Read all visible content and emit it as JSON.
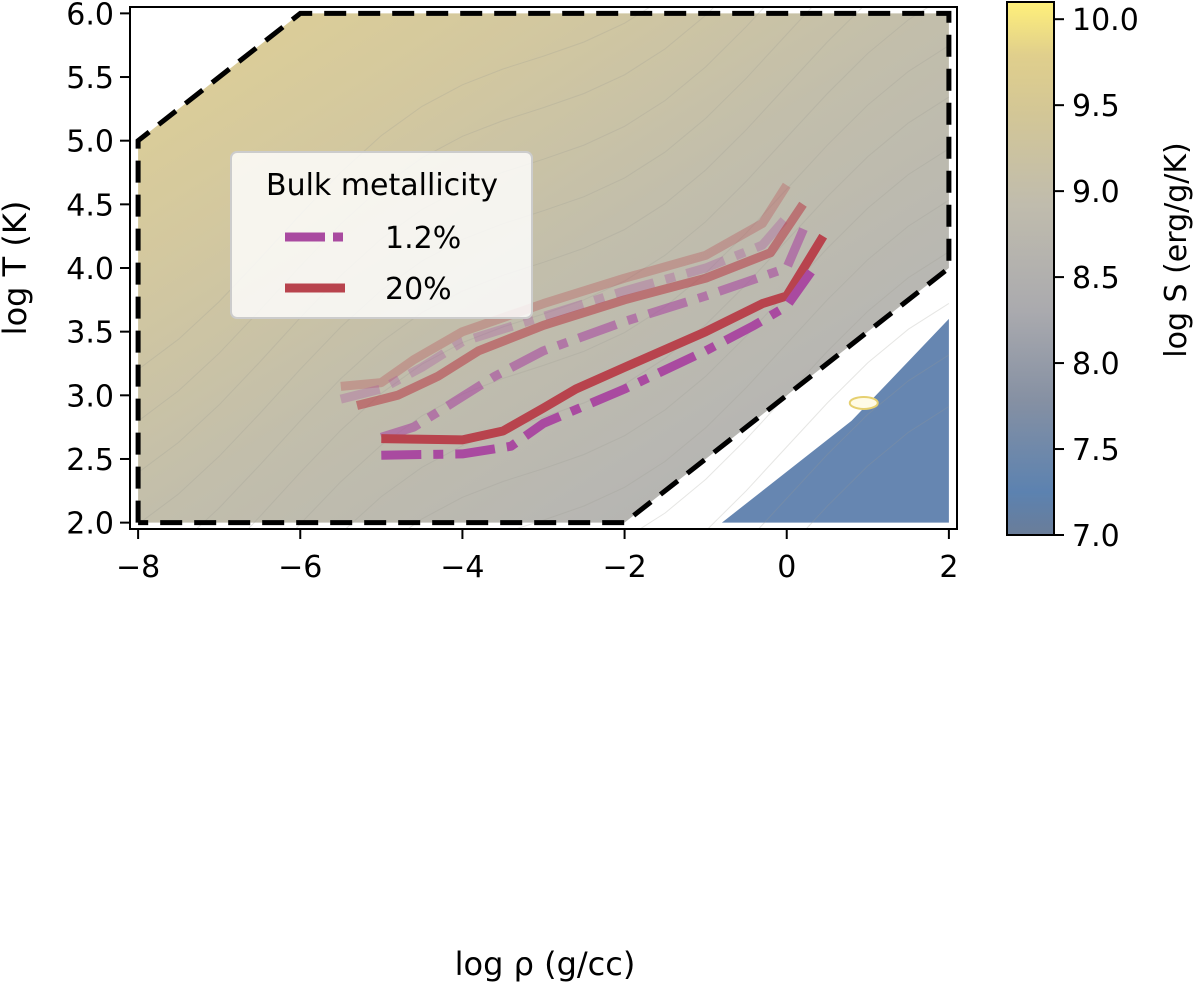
{
  "chart_data": {
    "type": "line",
    "xlabel": "log ρ (g/cc)",
    "ylabel": "log T (K)",
    "xlim": [
      -8.1,
      2.1
    ],
    "ylim": [
      1.95,
      6.05
    ],
    "xticks": [
      "−8",
      "−6",
      "−4",
      "−2",
      "0",
      "2"
    ],
    "yticks": [
      "2.0",
      "2.5",
      "3.0",
      "3.5",
      "4.0",
      "4.5",
      "5.0",
      "5.5",
      "6.0"
    ],
    "grid": false,
    "legend": {
      "title": "Bulk metallicity",
      "placement": "upper-left",
      "entries": [
        {
          "label": "1.2%",
          "style": "dashdot",
          "color": "#a94aa0"
        },
        {
          "label": "20%",
          "style": "solid",
          "color": "#b8434d"
        }
      ]
    },
    "boundary": {
      "style": "dashed",
      "color": "#000000",
      "points": [
        [
          -8,
          2.0
        ],
        [
          -8,
          5.0
        ],
        [
          -6,
          6.0
        ],
        [
          2,
          6.0
        ],
        [
          2,
          4.0
        ],
        [
          -2,
          2.0
        ],
        [
          -8,
          2.0
        ]
      ]
    },
    "background": {
      "quantity": "log S",
      "note_colors": {
        "high": "#d7c98a",
        "mid": "#b9b9b1",
        "low": "#5e80ad"
      }
    },
    "colorbar": {
      "label": "log S (erg/g/K)",
      "range": [
        7.0,
        10.1
      ],
      "ticks": [
        "7.0",
        "7.5",
        "8.0",
        "8.5",
        "9.0",
        "9.5",
        "10.0"
      ],
      "colors": [
        "#6a7d99",
        "#5c82b0",
        "#8590a3",
        "#aaaaae",
        "#c0bcad",
        "#d4c795",
        "#fff07a"
      ]
    },
    "series": [
      {
        "metallicity": "20%",
        "style": "solid",
        "opacity": 0.3,
        "x": [
          -5.5,
          -5.0,
          -4.6,
          -4.0,
          -3.0,
          -2.0,
          -1.0,
          -0.3,
          0.0
        ],
        "y": [
          3.07,
          3.1,
          3.28,
          3.5,
          3.72,
          3.92,
          4.1,
          4.35,
          4.65
        ]
      },
      {
        "metallicity": "1.2%",
        "style": "dashdot",
        "opacity": 0.3,
        "x": [
          -5.5,
          -5.0,
          -4.5,
          -4.0,
          -3.0,
          -2.0,
          -1.0,
          -0.3,
          0.0
        ],
        "y": [
          2.97,
          3.05,
          3.22,
          3.42,
          3.62,
          3.82,
          4.0,
          4.18,
          4.4
        ]
      },
      {
        "metallicity": "20%",
        "style": "solid",
        "opacity": 0.6,
        "x": [
          -5.3,
          -4.8,
          -4.3,
          -3.8,
          -3.0,
          -2.0,
          -1.0,
          -0.2,
          0.2
        ],
        "y": [
          2.92,
          3.0,
          3.15,
          3.35,
          3.55,
          3.75,
          3.92,
          4.12,
          4.5
        ]
      },
      {
        "metallicity": "1.2%",
        "style": "dashdot",
        "opacity": 0.6,
        "x": [
          -5.0,
          -4.6,
          -4.1,
          -3.6,
          -3.0,
          -2.0,
          -1.0,
          0.0,
          0.25
        ],
        "y": [
          2.67,
          2.75,
          2.95,
          3.15,
          3.35,
          3.58,
          3.78,
          4.0,
          4.37
        ]
      },
      {
        "metallicity": "20%",
        "style": "solid",
        "opacity": 1.0,
        "x": [
          -5.0,
          -4.0,
          -3.5,
          -3.0,
          -2.6,
          -2.0,
          -1.0,
          -0.3,
          0.0,
          0.45
        ],
        "y": [
          2.66,
          2.65,
          2.72,
          2.9,
          3.05,
          3.22,
          3.5,
          3.72,
          3.78,
          4.25
        ]
      },
      {
        "metallicity": "1.2%",
        "style": "dashdot",
        "opacity": 1.0,
        "x": [
          -5.0,
          -4.0,
          -3.4,
          -3.0,
          -2.0,
          -1.0,
          -0.4,
          0.0,
          0.3
        ],
        "y": [
          2.53,
          2.54,
          2.6,
          2.78,
          3.05,
          3.35,
          3.55,
          3.7,
          3.97
        ]
      }
    ]
  }
}
